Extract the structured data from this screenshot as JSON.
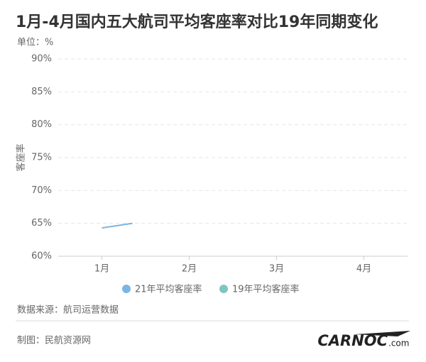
{
  "chart_data": {
    "type": "line",
    "title": "1月-4月国内五大航司平均客座率对比19年同期变化",
    "unit_label": "单位：%",
    "y_label": "客座率",
    "xlim": [
      0.5,
      4.5
    ],
    "xticks": [
      {
        "value": 1,
        "label": "1月"
      },
      {
        "value": 2,
        "label": "2月"
      },
      {
        "value": 3,
        "label": "3月"
      },
      {
        "value": 4,
        "label": "4月"
      }
    ],
    "ylim": [
      60,
      90
    ],
    "yticks": [
      {
        "value": 60,
        "label": "60%"
      },
      {
        "value": 65,
        "label": "65%"
      },
      {
        "value": 70,
        "label": "70%"
      },
      {
        "value": 75,
        "label": "75%"
      },
      {
        "value": 80,
        "label": "80%"
      },
      {
        "value": 85,
        "label": "85%"
      },
      {
        "value": 90,
        "label": "90%"
      }
    ],
    "grid": true,
    "x": [
      1,
      1.35
    ],
    "series": [
      {
        "name": "21年平均客座率",
        "color": "#7cb5e2",
        "values": [
          64.3,
          65.0
        ]
      },
      {
        "name": "19年平均客座率",
        "color": "#7fc5c1",
        "values": [
          null,
          null
        ]
      }
    ],
    "source": "数据来源：航司运营数据",
    "credit": "制图：民航资源网",
    "logo": "CARNOC",
    "logo_suffix": ".com"
  }
}
